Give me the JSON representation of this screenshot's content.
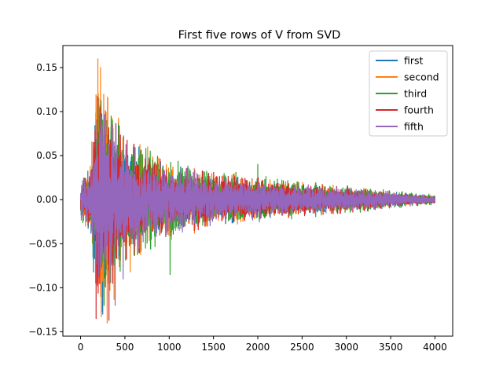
{
  "chart_data": {
    "type": "line",
    "title": "First five rows of V from SVD",
    "xlabel": "",
    "ylabel": "",
    "xlim": [
      -200,
      4200
    ],
    "ylim": [
      -0.155,
      0.175
    ],
    "x_ticks": [
      0,
      500,
      1000,
      1500,
      2000,
      2500,
      3000,
      3500,
      4000
    ],
    "y_ticks": [
      -0.15,
      -0.1,
      -0.05,
      0.0,
      0.05,
      0.1,
      0.15
    ],
    "x_tick_labels": [
      "0",
      "500",
      "1000",
      "1500",
      "2000",
      "2500",
      "3000",
      "3500",
      "4000"
    ],
    "y_tick_labels": [
      "−0.15",
      "−0.10",
      "−0.05",
      "0.00",
      "0.05",
      "0.10",
      "0.15"
    ],
    "grid": false,
    "legend_position": "top-right",
    "x_range": [
      0,
      4000
    ],
    "num_points_per_series": 4001,
    "series": [
      {
        "name": "first",
        "color": "#1f77b4",
        "envelope": [
          [
            0,
            0.02
          ],
          [
            100,
            0.03
          ],
          [
            200,
            0.12
          ],
          [
            300,
            0.1
          ],
          [
            500,
            0.06
          ],
          [
            1000,
            0.035
          ],
          [
            1500,
            0.025
          ],
          [
            2000,
            0.02
          ],
          [
            2500,
            0.015
          ],
          [
            3000,
            0.012
          ],
          [
            3500,
            0.008
          ],
          [
            4000,
            0.004
          ]
        ],
        "peaks": [
          [
            205,
            0.115
          ],
          [
            250,
            -0.13
          ],
          [
            140,
            -0.065
          ]
        ]
      },
      {
        "name": "second",
        "color": "#ff7f0e",
        "envelope": [
          [
            0,
            0.02
          ],
          [
            100,
            0.035
          ],
          [
            200,
            0.14
          ],
          [
            300,
            0.12
          ],
          [
            500,
            0.065
          ],
          [
            1000,
            0.04
          ],
          [
            1500,
            0.028
          ],
          [
            2000,
            0.022
          ],
          [
            2500,
            0.017
          ],
          [
            3000,
            0.013
          ],
          [
            3500,
            0.008
          ],
          [
            4000,
            0.004
          ]
        ],
        "peaks": [
          [
            195,
            0.16
          ],
          [
            225,
            0.15
          ],
          [
            300,
            -0.14
          ],
          [
            560,
            -0.082
          ]
        ]
      },
      {
        "name": "third",
        "color": "#2ca02c",
        "envelope": [
          [
            0,
            0.02
          ],
          [
            100,
            0.03
          ],
          [
            200,
            0.11
          ],
          [
            300,
            0.1
          ],
          [
            500,
            0.06
          ],
          [
            1000,
            0.04
          ],
          [
            1500,
            0.03
          ],
          [
            2000,
            0.024
          ],
          [
            2500,
            0.018
          ],
          [
            3000,
            0.014
          ],
          [
            3500,
            0.009
          ],
          [
            4000,
            0.005
          ]
        ],
        "peaks": [
          [
            360,
            0.09
          ],
          [
            265,
            -0.12
          ],
          [
            1010,
            -0.085
          ],
          [
            2000,
            0.04
          ]
        ]
      },
      {
        "name": "fourth",
        "color": "#d62728",
        "envelope": [
          [
            0,
            0.02
          ],
          [
            100,
            0.03
          ],
          [
            200,
            0.11
          ],
          [
            300,
            0.1
          ],
          [
            500,
            0.06
          ],
          [
            1000,
            0.035
          ],
          [
            1500,
            0.027
          ],
          [
            2000,
            0.022
          ],
          [
            2500,
            0.016
          ],
          [
            3000,
            0.013
          ],
          [
            3500,
            0.008
          ],
          [
            4000,
            0.004
          ]
        ],
        "peaks": [
          [
            175,
            -0.135
          ],
          [
            320,
            -0.137
          ],
          [
            225,
            0.105
          ]
        ]
      },
      {
        "name": "fifth",
        "color": "#9467bd",
        "envelope": [
          [
            0,
            0.02
          ],
          [
            100,
            0.03
          ],
          [
            200,
            0.1
          ],
          [
            300,
            0.095
          ],
          [
            500,
            0.055
          ],
          [
            1000,
            0.035
          ],
          [
            1500,
            0.025
          ],
          [
            2000,
            0.02
          ],
          [
            2500,
            0.015
          ],
          [
            3000,
            0.012
          ],
          [
            3500,
            0.008
          ],
          [
            4000,
            0.004
          ]
        ],
        "peaks": [
          [
            390,
            -0.12
          ],
          [
            480,
            -0.09
          ],
          [
            230,
            0.095
          ]
        ]
      }
    ]
  }
}
